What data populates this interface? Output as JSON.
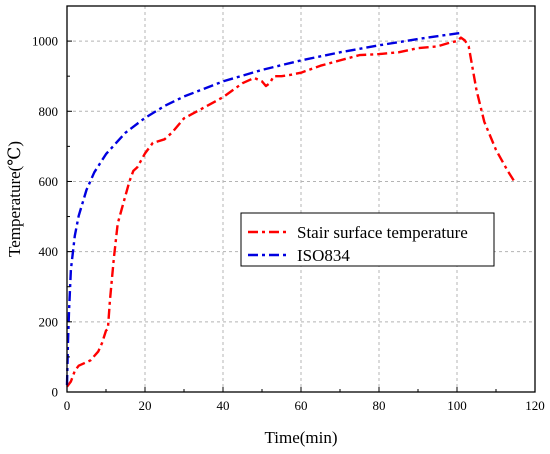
{
  "chart_data": {
    "type": "line",
    "title": "",
    "xlabel": "Time(min)",
    "ylabel": "Temperature(℃)",
    "xlim": [
      0,
      120
    ],
    "ylim": [
      0,
      1100
    ],
    "xticks": [
      0,
      20,
      40,
      60,
      80,
      100,
      120
    ],
    "yticks": [
      0,
      200,
      400,
      600,
      800,
      1000
    ],
    "grid": true,
    "legend": {
      "placement": "center-right"
    },
    "series": [
      {
        "name": "Stair surface temperature",
        "color": "#ff0000",
        "dash": "dash-dot",
        "x": [
          0,
          1,
          2,
          3,
          5,
          6,
          8,
          9,
          10,
          10.5,
          11,
          12,
          13,
          14,
          15,
          16,
          17,
          18,
          20,
          22,
          25,
          27,
          30,
          35,
          40,
          45,
          48,
          50,
          51,
          52,
          53,
          55,
          57,
          60,
          65,
          70,
          75,
          80,
          85,
          90,
          95,
          98,
          100,
          101,
          102,
          103,
          105,
          107,
          110,
          113,
          115
        ],
        "y": [
          15,
          30,
          60,
          75,
          85,
          90,
          115,
          140,
          175,
          180,
          260,
          380,
          480,
          520,
          560,
          600,
          630,
          640,
          680,
          710,
          720,
          740,
          780,
          810,
          840,
          880,
          895,
          885,
          872,
          880,
          900,
          900,
          903,
          910,
          930,
          945,
          960,
          963,
          968,
          980,
          985,
          995,
          1000,
          1010,
          1002,
          985,
          860,
          770,
          690,
          630,
          595
        ]
      },
      {
        "name": "ISO834",
        "color": "#0000e0",
        "dash": "dash-dot",
        "x": [
          0,
          0.25,
          0.5,
          1,
          2,
          3,
          5,
          7,
          10,
          15,
          20,
          25,
          30,
          40,
          50,
          60,
          70,
          80,
          90,
          95,
          100,
          101
        ],
        "y": [
          20,
          143,
          229,
          349,
          445,
          502,
          576,
          626,
          678,
          739,
          781,
          815,
          842,
          885,
          918,
          945,
          968,
          988,
          1006,
          1014,
          1022,
          1023
        ]
      }
    ]
  }
}
